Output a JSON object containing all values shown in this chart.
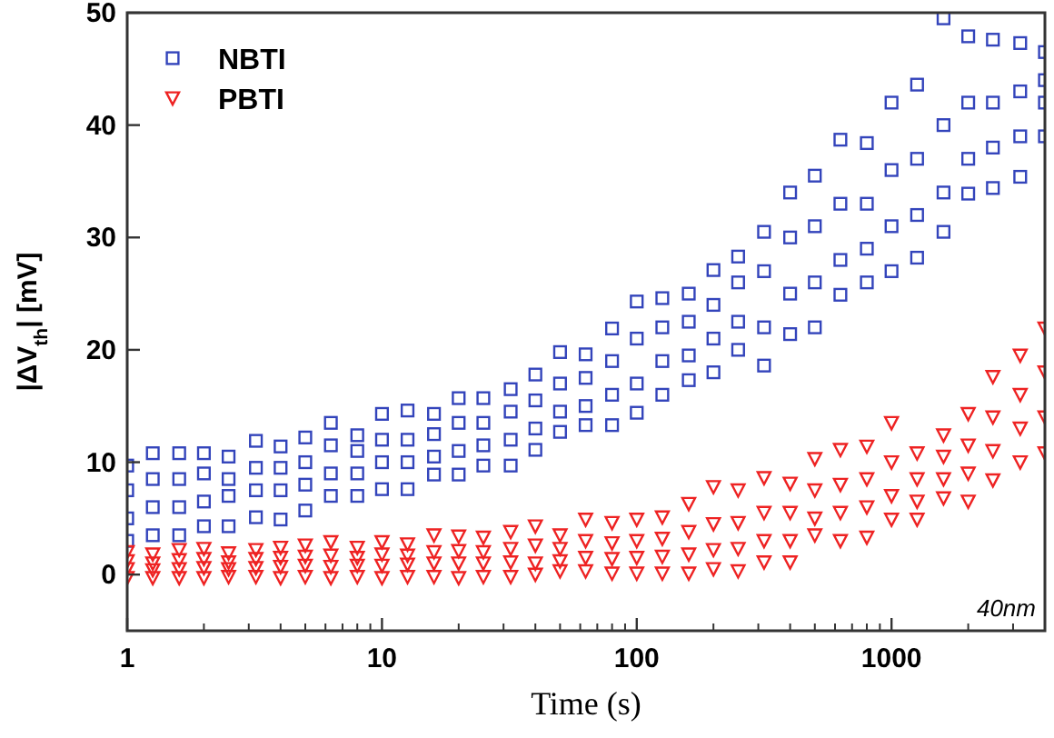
{
  "chart_data": {
    "type": "scatter",
    "xlabel": "Time (s)",
    "ylabel": "|ΔV$_{th}$| [mV]",
    "log": "x",
    "xlim": [
      1,
      4000
    ],
    "xticks": [
      1,
      10,
      100,
      1000
    ],
    "ylim": [
      -5,
      50
    ],
    "yticks": [
      0,
      10,
      20,
      30,
      40,
      50
    ],
    "legend": "top left",
    "grid": false,
    "annotations": [
      "40nm"
    ],
    "series": [
      {
        "name": "NBTI",
        "color": "#3344bb",
        "marker": "square",
        "x": [
          1,
          1,
          1,
          1,
          1.26,
          1.26,
          1.26,
          1.26,
          1.6,
          1.6,
          1.6,
          1.6,
          2,
          2,
          2,
          2,
          2.5,
          2.5,
          2.5,
          2.5,
          3.2,
          3.2,
          3.2,
          3.2,
          4,
          4,
          4,
          4,
          5,
          5,
          5,
          5,
          6.3,
          6.3,
          6.3,
          6.3,
          8,
          8,
          8,
          8,
          10,
          10,
          10,
          10,
          12.6,
          12.6,
          12.6,
          12.6,
          16,
          16,
          16,
          16,
          20,
          20,
          20,
          20,
          25,
          25,
          25,
          25,
          32,
          32,
          32,
          32,
          40,
          40,
          40,
          40,
          50,
          50,
          50,
          50,
          63,
          63,
          63,
          63,
          80,
          80,
          80,
          80,
          100,
          100,
          100,
          100,
          126,
          126,
          126,
          126,
          160,
          160,
          160,
          160,
          200,
          200,
          200,
          200,
          250,
          250,
          250,
          250,
          316,
          316,
          316,
          316,
          400,
          400,
          400,
          400,
          500,
          500,
          500,
          500,
          630,
          630,
          630,
          630,
          800,
          800,
          800,
          800,
          1000,
          1000,
          1000,
          1000,
          1260,
          1260,
          1260,
          1260,
          1600,
          1600,
          1600,
          1600,
          2000,
          2000,
          2000,
          2000,
          2500,
          2500,
          2500,
          2500,
          3200,
          3200,
          3200,
          3200,
          4000,
          4000,
          4000,
          4000
        ],
        "values": [
          3,
          5,
          7.5,
          9.7,
          3.5,
          6,
          8.5,
          10.8,
          3.5,
          6,
          8.5,
          10.8,
          4.3,
          6.5,
          9,
          10.8,
          4.3,
          7,
          8.5,
          10.5,
          5.1,
          7.5,
          9.5,
          11.9,
          4.9,
          7.5,
          9.5,
          11.4,
          5.7,
          8,
          10,
          12.2,
          7,
          9,
          11.5,
          13.5,
          7,
          9,
          11,
          12.4,
          7.6,
          10,
          12,
          14.3,
          7.6,
          10,
          12,
          14.6,
          8.9,
          10.5,
          12.5,
          14.3,
          8.9,
          11,
          13.5,
          15.7,
          9.7,
          11.5,
          13.5,
          15.7,
          9.7,
          12,
          14.5,
          16.5,
          11.1,
          13,
          15.5,
          17.8,
          12.7,
          14.5,
          17,
          19.8,
          13.3,
          15,
          17.5,
          19.6,
          13.3,
          16,
          19,
          21.9,
          14.4,
          17,
          21,
          24.3,
          16,
          19,
          22,
          24.6,
          17.3,
          19.5,
          22.5,
          25,
          18,
          21,
          24,
          27.1,
          20,
          22.5,
          26,
          28.3,
          18.6,
          22,
          27,
          30.5,
          21.4,
          25,
          30,
          34,
          22,
          26,
          31,
          35.5,
          24.9,
          28,
          33,
          38.7,
          26,
          29,
          33,
          38.4,
          27,
          31,
          36,
          42,
          28.2,
          32,
          37,
          43.6,
          30.5,
          34,
          40,
          49.5,
          33.9,
          37,
          42,
          47.9,
          34.4,
          38,
          42,
          47.6,
          35.4,
          39,
          43,
          47.3,
          39,
          42,
          44,
          46.5
        ]
      },
      {
        "name": "PBTI",
        "color": "#ee2222",
        "marker": "triangle",
        "x": [
          1,
          1,
          1,
          1,
          1.26,
          1.26,
          1.26,
          1.26,
          1.6,
          1.6,
          1.6,
          1.6,
          2,
          2,
          2,
          2,
          2.5,
          2.5,
          2.5,
          2.5,
          3.2,
          3.2,
          3.2,
          3.2,
          4,
          4,
          4,
          4,
          5,
          5,
          5,
          5,
          6.3,
          6.3,
          6.3,
          6.3,
          8,
          8,
          8,
          8,
          10,
          10,
          10,
          10,
          12.6,
          12.6,
          12.6,
          12.6,
          16,
          16,
          16,
          16,
          20,
          20,
          20,
          20,
          25,
          25,
          25,
          25,
          32,
          32,
          32,
          32,
          40,
          40,
          40,
          40,
          50,
          50,
          50,
          50,
          63,
          63,
          63,
          63,
          80,
          80,
          80,
          80,
          100,
          100,
          100,
          100,
          126,
          126,
          126,
          126,
          160,
          160,
          160,
          160,
          200,
          200,
          200,
          200,
          250,
          250,
          250,
          250,
          316,
          316,
          316,
          316,
          400,
          400,
          400,
          400,
          500,
          500,
          500,
          500,
          630,
          630,
          630,
          630,
          800,
          800,
          800,
          800,
          1000,
          1000,
          1000,
          1000,
          1260,
          1260,
          1260,
          1260,
          1600,
          1600,
          1600,
          1600,
          2000,
          2000,
          2000,
          2000,
          2500,
          2500,
          2500,
          2500,
          3200,
          3200,
          3200,
          3200,
          4000,
          4000,
          4000,
          4000
        ],
        "values": [
          -0.3,
          0.5,
          1.2,
          2,
          -0.3,
          0.4,
          1,
          1.8,
          -0.3,
          0.5,
          1.3,
          2.2,
          -0.3,
          0.6,
          1.4,
          2.3,
          -0.2,
          0.5,
          1.1,
          1.9,
          -0.2,
          0.6,
          1.4,
          2.2,
          -0.3,
          0.7,
          1.5,
          2.4,
          -0.2,
          0.8,
          1.6,
          2.6,
          -0.3,
          0.7,
          1.7,
          2.9,
          -0.2,
          0.8,
          1.5,
          2.4,
          -0.3,
          0.8,
          1.8,
          2.9,
          -0.2,
          0.9,
          1.7,
          2.7,
          -0.2,
          1,
          2,
          3.5,
          -0.3,
          1,
          2.1,
          3.4,
          -0.2,
          1,
          2,
          3.3,
          -0.2,
          1.1,
          2.3,
          3.8,
          0,
          1,
          2.6,
          4.3,
          0.3,
          1.2,
          2.3,
          3.5,
          0.3,
          1.5,
          3,
          4.9,
          0.1,
          1.4,
          2.8,
          4.6,
          0.1,
          1.5,
          3,
          4.9,
          0.1,
          1.6,
          3.2,
          5.1,
          0.1,
          1.8,
          3.8,
          6.3,
          0.5,
          2.2,
          4.5,
          7.8,
          0.3,
          2.3,
          4.6,
          7.5,
          1.1,
          3,
          5.5,
          8.6,
          1.1,
          3,
          5.5,
          8.1,
          3.5,
          5,
          7.5,
          10.3,
          3,
          5.5,
          8,
          11.1,
          3.3,
          6,
          8.5,
          11.4,
          4.9,
          7,
          10,
          13.5,
          4.9,
          6.5,
          8.5,
          10.8,
          6.8,
          8.5,
          10.5,
          12.4,
          6.5,
          9,
          11.5,
          14.3,
          8.4,
          11,
          14,
          17.6,
          10,
          13,
          16,
          19.5,
          10.8,
          14,
          18,
          21.9
        ]
      }
    ]
  }
}
